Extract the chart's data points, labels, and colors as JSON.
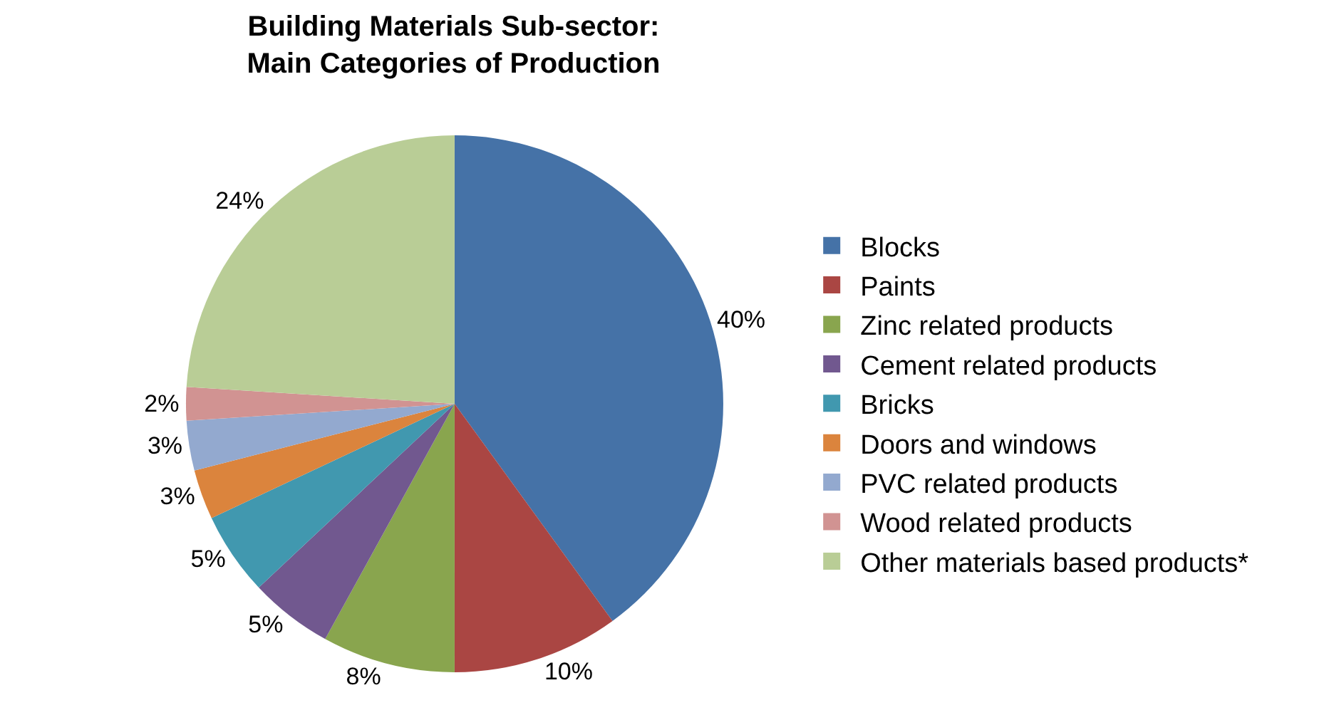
{
  "chart_data": {
    "type": "pie",
    "title": "Building Materials Sub-sector:\nMain Categories of Production",
    "categories": [
      "Blocks",
      "Paints",
      "Zinc related products",
      "Cement related products",
      "Bricks",
      "Doors and windows",
      "PVC related products",
      "Wood related products",
      "Other materials based products*"
    ],
    "values": [
      40,
      10,
      8,
      5,
      5,
      3,
      3,
      2,
      24
    ],
    "colors": [
      "#4572a7",
      "#aa4643",
      "#89a54e",
      "#71588f",
      "#4198af",
      "#db843d",
      "#93a9cf",
      "#d19392",
      "#b9cd96"
    ],
    "value_labels": [
      "40%",
      "10%",
      "8%",
      "5%",
      "5%",
      "3%",
      "3%",
      "2%",
      "24%"
    ],
    "legend": "right"
  }
}
